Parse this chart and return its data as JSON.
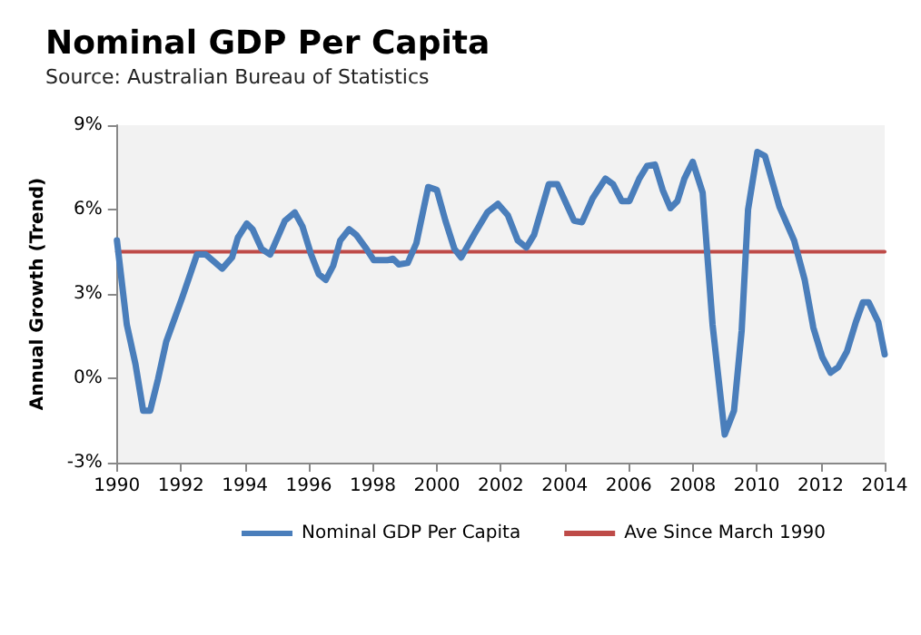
{
  "chart_data": {
    "type": "line",
    "title": "Nominal GDP Per Capita",
    "subtitle": "Source: Australian Bureau of Statistics",
    "ylabel": "Annual Growth (Trend)",
    "xlim": [
      1990,
      2014
    ],
    "xticks": [
      1990,
      1992,
      1994,
      1996,
      1998,
      2000,
      2002,
      2004,
      2006,
      2008,
      2010,
      2012,
      2014
    ],
    "ylim": [
      -3,
      9
    ],
    "yticks": [
      {
        "value": -3,
        "label": "-3%"
      },
      {
        "value": 0,
        "label": "0%"
      },
      {
        "value": 3,
        "label": "3%"
      },
      {
        "value": 6,
        "label": "6%"
      },
      {
        "value": 9,
        "label": "9%"
      }
    ],
    "grid": false,
    "legend": "bottom",
    "marker": "none",
    "line_style": "solid",
    "series": [
      {
        "name": "Nominal GDP Per Capita",
        "color": "#4a7ebb",
        "x": [
          1990.0,
          1990.31,
          1990.58,
          1990.82,
          1991.04,
          1991.28,
          1991.54,
          1992.05,
          1992.5,
          1992.78,
          1993.29,
          1993.6,
          1993.78,
          1994.06,
          1994.24,
          1994.52,
          1994.79,
          1995.25,
          1995.56,
          1995.8,
          1996.07,
          1996.31,
          1996.53,
          1996.76,
          1996.98,
          1997.26,
          1997.48,
          1997.8,
          1998.03,
          1998.45,
          1998.63,
          1998.81,
          1999.09,
          1999.36,
          1999.73,
          2000.0,
          2000.27,
          2000.55,
          2000.76,
          2001.21,
          2001.58,
          2001.91,
          2002.22,
          2002.53,
          2002.8,
          2003.04,
          2003.5,
          2003.77,
          2004.05,
          2004.29,
          2004.54,
          2004.87,
          2005.27,
          2005.51,
          2005.78,
          2006.02,
          2006.33,
          2006.57,
          2006.82,
          2007.06,
          2007.3,
          2007.52,
          2007.74,
          2008.0,
          2008.31,
          2008.62,
          2009.0,
          2009.29,
          2009.53,
          2009.73,
          2010.02,
          2010.26,
          2010.71,
          2011.17,
          2011.5,
          2011.77,
          2012.05,
          2012.31,
          2012.55,
          2012.82,
          2013.1,
          2013.32,
          2013.5,
          2013.8,
          2014.0
        ],
        "values": [
          4.9,
          1.9,
          0.5,
          -1.15,
          -1.15,
          -0.05,
          1.3,
          2.9,
          4.4,
          4.4,
          3.9,
          4.3,
          5.0,
          5.5,
          5.3,
          4.6,
          4.4,
          5.6,
          5.9,
          5.4,
          4.4,
          3.7,
          3.5,
          4.0,
          4.9,
          5.3,
          5.1,
          4.6,
          4.2,
          4.2,
          4.25,
          4.05,
          4.1,
          4.8,
          6.8,
          6.7,
          5.6,
          4.6,
          4.3,
          5.2,
          5.9,
          6.2,
          5.8,
          4.9,
          4.65,
          5.1,
          6.9,
          6.9,
          6.2,
          5.6,
          5.55,
          6.4,
          7.1,
          6.9,
          6.3,
          6.3,
          7.1,
          7.55,
          7.6,
          6.7,
          6.05,
          6.3,
          7.1,
          7.7,
          6.6,
          1.9,
          -2.0,
          -1.15,
          1.7,
          6.0,
          8.05,
          7.9,
          6.1,
          4.9,
          3.5,
          1.8,
          0.75,
          0.2,
          0.4,
          0.95,
          2.0,
          2.7,
          2.7,
          2.0,
          0.85
        ]
      },
      {
        "name": "Ave Since March 1990",
        "color": "#be4b48",
        "x": [
          1990,
          2014
        ],
        "values": [
          4.5,
          4.5
        ]
      }
    ]
  }
}
